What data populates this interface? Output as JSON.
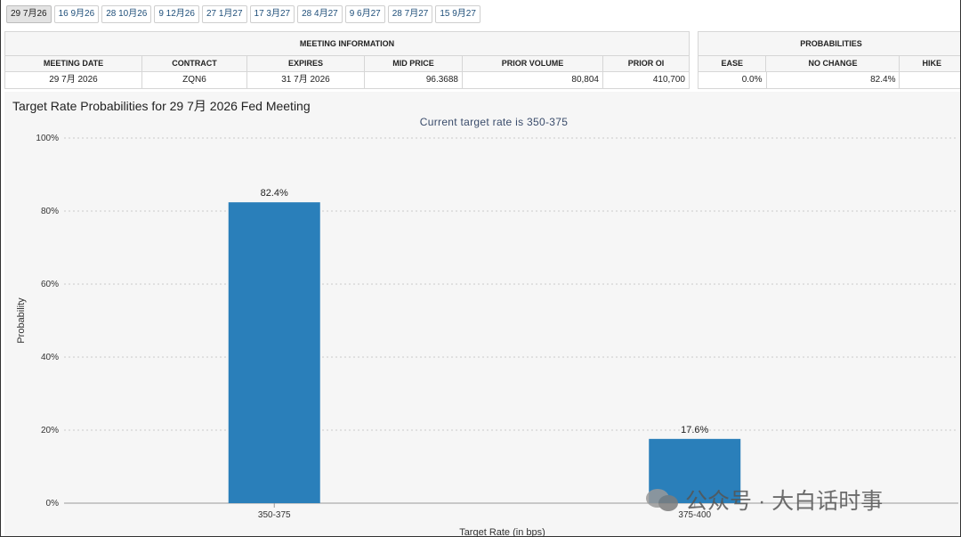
{
  "tabs": [
    {
      "label": "29 7月26",
      "active": true
    },
    {
      "label": "16 9月26"
    },
    {
      "label": "28 10月26"
    },
    {
      "label": "9 12月26"
    },
    {
      "label": "27 1月27"
    },
    {
      "label": "17 3月27"
    },
    {
      "label": "28 4月27"
    },
    {
      "label": "9 6月27"
    },
    {
      "label": "28 7月27"
    },
    {
      "label": "15 9月27"
    }
  ],
  "meeting_info": {
    "header": "MEETING INFORMATION",
    "columns": [
      "MEETING DATE",
      "CONTRACT",
      "EXPIRES",
      "MID PRICE",
      "PRIOR VOLUME",
      "PRIOR OI"
    ],
    "row": [
      "29 7月 2026",
      "ZQN6",
      "31 7月 2026",
      "96.3688",
      "80,804",
      "410,700"
    ]
  },
  "probabilities": {
    "header": "PROBABILITIES",
    "columns": [
      "EASE",
      "NO CHANGE",
      "HIKE"
    ],
    "row": [
      "0.0%",
      "82.4%",
      ""
    ]
  },
  "chart": {
    "title": "Target Rate Probabilities for 29 7月 2026 Fed Meeting",
    "subtitle": "Current target rate is 350-375"
  },
  "chart_data": {
    "type": "bar",
    "title": "Target Rate Probabilities for 29 7月 2026 Fed Meeting",
    "subtitle": "Current target rate is 350-375",
    "categories": [
      "350-375",
      "375-400"
    ],
    "values": [
      82.4,
      17.6
    ],
    "data_labels": [
      "82.4%",
      "17.6%"
    ],
    "xlabel": "Target Rate (in bps)",
    "ylabel": "Probability",
    "ylim": [
      0,
      100
    ],
    "yticks": [
      "0%",
      "20%",
      "40%",
      "60%",
      "80%",
      "100%"
    ],
    "grid": true,
    "bar_color": "#2a7fba"
  },
  "watermark": {
    "text": "公众号 · 大白话时事"
  }
}
